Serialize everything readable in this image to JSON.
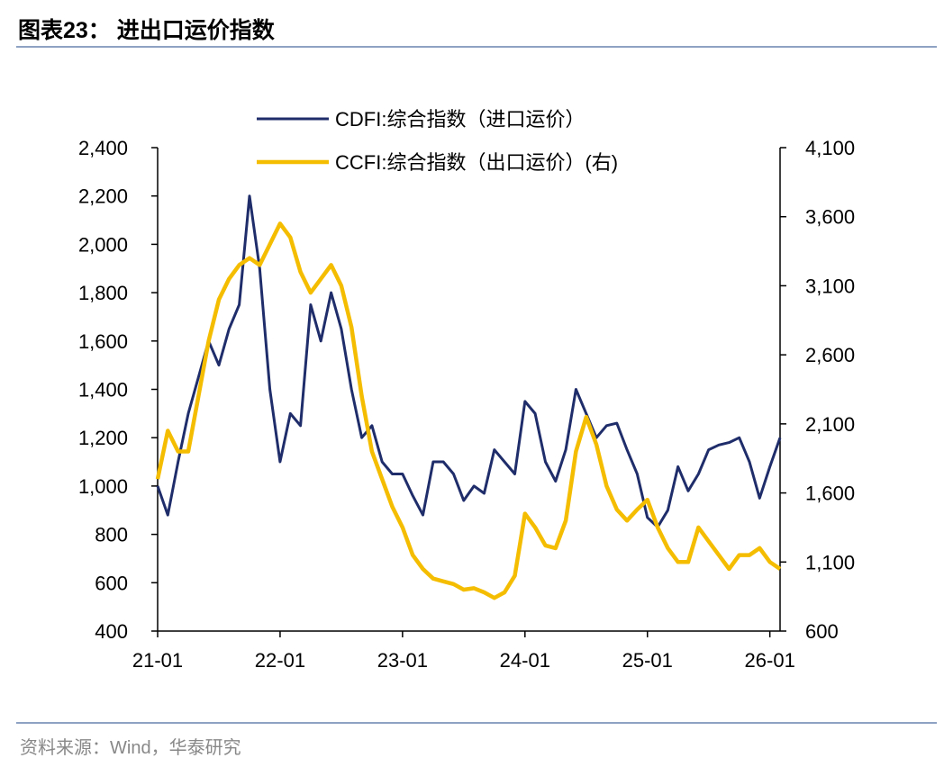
{
  "chart_data": {
    "type": "line",
    "title": "图表23：  进出口运价指数",
    "source": "资料来源：Wind，华泰研究",
    "categories": [
      "21-01",
      "21-02",
      "21-03",
      "21-04",
      "21-05",
      "21-06",
      "21-07",
      "21-08",
      "21-09",
      "21-10",
      "21-11",
      "21-12",
      "22-01",
      "22-02",
      "22-03",
      "22-04",
      "22-05",
      "22-06",
      "22-07",
      "22-08",
      "22-09",
      "22-10",
      "22-11",
      "22-12",
      "23-01",
      "23-02",
      "23-03",
      "23-04",
      "23-05",
      "23-06",
      "23-07",
      "23-08",
      "23-09",
      "23-10",
      "23-11",
      "23-12",
      "24-01",
      "24-02",
      "24-03",
      "24-04",
      "24-05",
      "24-06",
      "24-07",
      "24-08",
      "24-09",
      "24-10",
      "24-11",
      "24-12",
      "25-01",
      "25-02",
      "25-03",
      "25-04",
      "25-05",
      "25-06",
      "25-07",
      "25-08",
      "25-09",
      "25-10",
      "25-11",
      "25-12",
      "26-01",
      "26-02"
    ],
    "series": [
      {
        "name": "CDFI:综合指数（进口运价）",
        "color": "#1f2d6b",
        "axis": "y",
        "values": [
          1000,
          880,
          1100,
          1300,
          1450,
          1600,
          1500,
          1650,
          1750,
          2200,
          1900,
          1400,
          1100,
          1300,
          1250,
          1750,
          1600,
          1800,
          1650,
          1400,
          1200,
          1250,
          1100,
          1050,
          1050,
          960,
          880,
          1100,
          1100,
          1050,
          940,
          1000,
          970,
          1150,
          1100,
          1050,
          1350,
          1300,
          1100,
          1020,
          1150,
          1400,
          1300,
          1200,
          1250,
          1260,
          1150,
          1050,
          870,
          830,
          900,
          1080,
          980,
          1050,
          1150,
          1170,
          1180,
          1200,
          1100,
          950,
          1080,
          1200
        ]
      },
      {
        "name": "CCFI:综合指数（出口运价）(右)",
        "color": "#f5bd00",
        "axis": "y2",
        "values": [
          1700,
          2050,
          1900,
          1900,
          2300,
          2700,
          3000,
          3150,
          3250,
          3300,
          3250,
          3400,
          3550,
          3450,
          3200,
          3050,
          3150,
          3250,
          3100,
          2800,
          2300,
          1900,
          1700,
          1500,
          1350,
          1150,
          1050,
          980,
          960,
          940,
          900,
          910,
          880,
          840,
          880,
          1000,
          1450,
          1350,
          1220,
          1200,
          1400,
          1900,
          2150,
          1950,
          1650,
          1480,
          1400,
          1480,
          1550,
          1350,
          1200,
          1100,
          1100,
          1350,
          1250,
          1150,
          1050,
          1150,
          1150,
          1200,
          1100,
          1050
        ]
      }
    ],
    "ylim": [
      400,
      2400
    ],
    "yticks": [
      400,
      600,
      800,
      {
        "value": 1000,
        "label": "1,000"
      },
      {
        "value": 1200,
        "label": "1,200"
      },
      {
        "value": 1400,
        "label": "1,400"
      },
      {
        "value": 1600,
        "label": "1,600"
      },
      {
        "value": 1800,
        "label": "1,800"
      },
      {
        "value": 2000,
        "label": "2,000"
      },
      {
        "value": 2200,
        "label": "2,200"
      },
      {
        "value": 2400,
        "label": "2,400"
      }
    ],
    "y2lim": [
      600,
      4100
    ],
    "y2ticks": [
      600,
      {
        "value": 1100,
        "label": "1,100"
      },
      {
        "value": 1600,
        "label": "1,600"
      },
      {
        "value": 2100,
        "label": "2,100"
      },
      {
        "value": 2600,
        "label": "2,600"
      },
      {
        "value": 3100,
        "label": "3,100"
      },
      {
        "value": 3600,
        "label": "3,600"
      },
      {
        "value": 4100,
        "label": "4,100"
      }
    ],
    "grid": false,
    "legend": "top"
  }
}
